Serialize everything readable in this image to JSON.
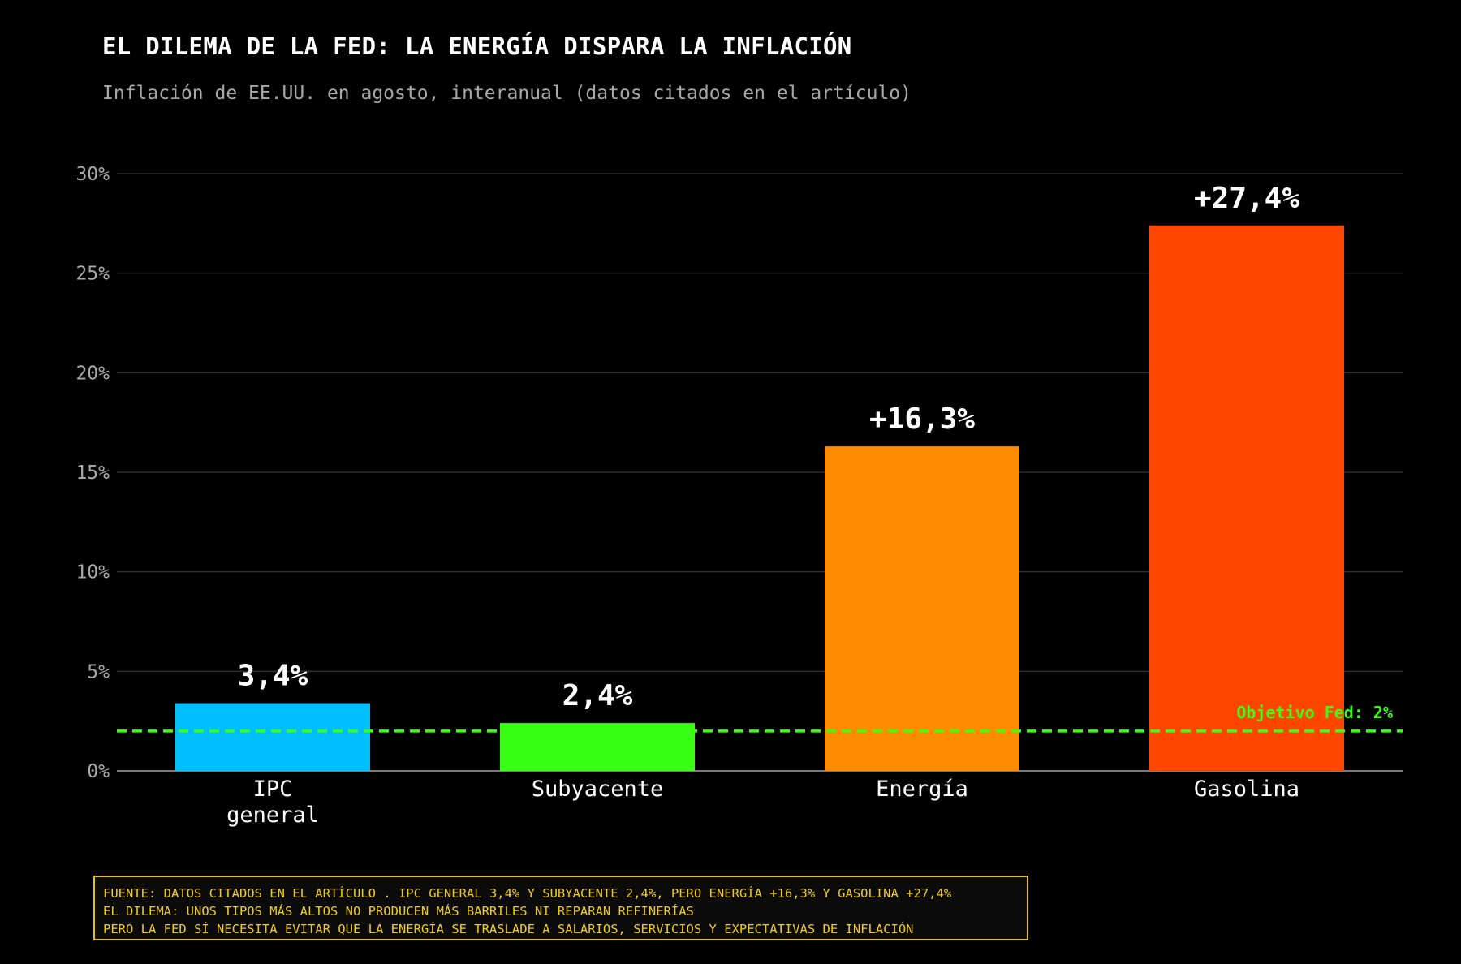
{
  "chart_data": {
    "type": "bar",
    "title": "EL DILEMA DE LA FED: LA ENERGÍA DISPARA LA INFLACIÓN",
    "subtitle": "Inflación de EE.UU. en agosto, interanual (datos citados en el artículo)",
    "categories": [
      [
        "IPC",
        "general"
      ],
      [
        "Subyacente"
      ],
      [
        "Energía"
      ],
      [
        "Gasolina"
      ]
    ],
    "values": [
      3.4,
      2.4,
      16.3,
      27.4
    ],
    "value_labels": [
      "3,4%",
      "2,4%",
      "+16,3%",
      "+27,4%"
    ],
    "colors": [
      "#00bfff",
      "#39ff14",
      "#ff8c00",
      "#ff4500"
    ],
    "ylim": [
      0,
      30
    ],
    "yticks": [
      0,
      5,
      10,
      15,
      20,
      25,
      30
    ],
    "ytick_labels": [
      "0%",
      "5%",
      "10%",
      "15%",
      "20%",
      "25%",
      "30%"
    ],
    "grid": true,
    "reference_line": {
      "value": 2,
      "label": "Objetivo Fed: 2%",
      "color": "#39ff14"
    }
  },
  "footnote": {
    "lines": [
      "FUENTE: DATOS CITADOS EN EL ARTÍCULO . IPC GENERAL 3,4% Y SUBYACENTE 2,4%, PERO ENERGÍA +16,3% Y GASOLINA +27,4%",
      "EL DILEMA: UNOS TIPOS MÁS ALTOS NO PRODUCEN MÁS BARRILES NI REPARAN REFINERÍAS",
      "PERO LA FED SÍ NECESITA EVITAR QUE LA ENERGÍA SE TRASLADE A SALARIOS, SERVICIOS Y EXPECTATIVAS DE INFLACIÓN"
    ]
  }
}
